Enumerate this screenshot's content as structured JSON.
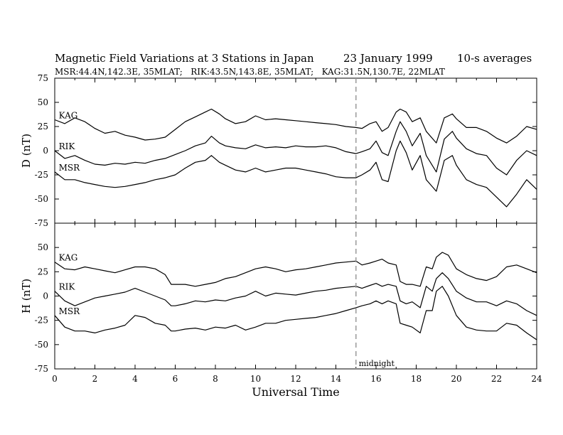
{
  "header": {
    "title": "Magnetic Field Variations at 3 Stations in Japan",
    "date": "23 January 1999",
    "averaging": "10-s averages",
    "stations_line": "MSR:44.4N,142.3E, 35MLAT;   RIK:43.5N,143.8E, 35MLAT;   KAG:31.5N,130.7E, 22MLAT"
  },
  "chart_data": [
    {
      "type": "line",
      "panel": "top",
      "ylabel": "D (nT)",
      "ylim": [
        -75,
        75
      ],
      "yticks": [
        75,
        50,
        25,
        0,
        -25,
        -50,
        -75
      ],
      "xlim": [
        0,
        24
      ],
      "grid": false,
      "series": [
        {
          "name": "KAG",
          "x": [
            0,
            0.5,
            1,
            1.5,
            2,
            2.5,
            3,
            3.5,
            4,
            4.5,
            5,
            5.5,
            6,
            6.5,
            7,
            7.5,
            7.8,
            8.2,
            8.5,
            9,
            9.5,
            10,
            10.5,
            11,
            11.5,
            12,
            12.5,
            13,
            13.5,
            14,
            14.5,
            15,
            15.3,
            15.7,
            16,
            16.3,
            16.6,
            17,
            17.2,
            17.5,
            17.8,
            18.2,
            18.5,
            19,
            19.4,
            19.8,
            20,
            20.5,
            21,
            21.5,
            22,
            22.5,
            23,
            23.5,
            24
          ],
          "y": [
            32,
            28,
            34,
            30,
            23,
            18,
            20,
            16,
            14,
            11,
            12,
            14,
            22,
            30,
            35,
            40,
            43,
            38,
            33,
            28,
            30,
            36,
            32,
            33,
            32,
            31,
            30,
            29,
            28,
            27,
            25,
            24,
            23,
            28,
            30,
            20,
            24,
            40,
            43,
            40,
            30,
            34,
            20,
            8,
            34,
            38,
            33,
            24,
            24,
            20,
            13,
            8,
            15,
            25,
            22
          ]
        },
        {
          "name": "RIK",
          "x": [
            0,
            0.5,
            1,
            1.5,
            2,
            2.5,
            3,
            3.5,
            4,
            4.5,
            5,
            5.5,
            6,
            6.5,
            7,
            7.5,
            7.8,
            8.2,
            8.5,
            9,
            9.5,
            10,
            10.5,
            11,
            11.5,
            12,
            12.5,
            13,
            13.5,
            14,
            14.5,
            15,
            15.3,
            15.7,
            16,
            16.3,
            16.6,
            17,
            17.2,
            17.5,
            17.8,
            18.2,
            18.5,
            19,
            19.4,
            19.8,
            20,
            20.5,
            21,
            21.5,
            22,
            22.5,
            23,
            23.5,
            24
          ],
          "y": [
            0,
            -8,
            -5,
            -10,
            -14,
            -15,
            -13,
            -14,
            -12,
            -13,
            -10,
            -8,
            -4,
            0,
            5,
            8,
            15,
            8,
            5,
            3,
            2,
            6,
            3,
            4,
            3,
            5,
            4,
            4,
            5,
            3,
            -1,
            -3,
            -1,
            2,
            10,
            -2,
            -5,
            20,
            30,
            20,
            5,
            18,
            -5,
            -22,
            12,
            20,
            13,
            2,
            -3,
            -5,
            -18,
            -25,
            -10,
            0,
            -5
          ]
        },
        {
          "name": "MSR",
          "x": [
            0,
            0.5,
            1,
            1.5,
            2,
            2.5,
            3,
            3.5,
            4,
            4.5,
            5,
            5.5,
            6,
            6.5,
            7,
            7.5,
            7.8,
            8.2,
            8.5,
            9,
            9.5,
            10,
            10.5,
            11,
            11.5,
            12,
            12.5,
            13,
            13.5,
            14,
            14.5,
            15,
            15.3,
            15.7,
            16,
            16.3,
            16.6,
            17,
            17.2,
            17.5,
            17.8,
            18.2,
            18.5,
            19,
            19.4,
            19.8,
            20,
            20.5,
            21,
            21.5,
            22,
            22.5,
            23,
            23.5,
            24
          ],
          "y": [
            -22,
            -30,
            -30,
            -33,
            -35,
            -37,
            -38,
            -37,
            -35,
            -33,
            -30,
            -28,
            -25,
            -18,
            -12,
            -10,
            -5,
            -12,
            -15,
            -20,
            -22,
            -18,
            -22,
            -20,
            -18,
            -18,
            -20,
            -22,
            -24,
            -27,
            -28,
            -28,
            -25,
            -20,
            -12,
            -30,
            -32,
            0,
            10,
            -2,
            -20,
            -5,
            -30,
            -42,
            -10,
            -5,
            -15,
            -30,
            -35,
            -38,
            -48,
            -58,
            -45,
            -30,
            -40
          ]
        }
      ]
    },
    {
      "type": "line",
      "panel": "bottom",
      "ylabel": "H (nT)",
      "ylim": [
        -75,
        75
      ],
      "yticks": [
        50,
        25,
        0,
        -25,
        -50,
        -75
      ],
      "xlim": [
        0,
        24
      ],
      "xticks": [
        0,
        2,
        4,
        6,
        8,
        10,
        12,
        14,
        16,
        18,
        20,
        22,
        24
      ],
      "xlabel": "Universal Time",
      "annotation": "midnight",
      "grid": false,
      "series": [
        {
          "name": "KAG",
          "x": [
            0,
            0.5,
            1,
            1.5,
            2,
            2.5,
            3,
            3.5,
            4,
            4.5,
            5,
            5.5,
            5.8,
            6,
            6.5,
            7,
            7.5,
            8,
            8.5,
            9,
            9.5,
            10,
            10.5,
            11,
            11.5,
            12,
            12.5,
            13,
            13.5,
            14,
            14.5,
            15,
            15.3,
            15.7,
            16,
            16.3,
            16.6,
            17,
            17.2,
            17.5,
            17.8,
            18.2,
            18.5,
            18.8,
            19,
            19.3,
            19.6,
            20,
            20.5,
            21,
            21.5,
            22,
            22.5,
            23,
            23.5,
            24
          ],
          "y": [
            35,
            28,
            27,
            30,
            28,
            26,
            24,
            27,
            30,
            30,
            28,
            22,
            12,
            12,
            12,
            10,
            12,
            14,
            18,
            20,
            24,
            28,
            30,
            28,
            25,
            27,
            28,
            30,
            32,
            34,
            35,
            36,
            32,
            34,
            36,
            38,
            34,
            32,
            15,
            12,
            12,
            10,
            30,
            28,
            40,
            45,
            42,
            28,
            22,
            18,
            16,
            20,
            30,
            32,
            28,
            24
          ]
        },
        {
          "name": "RIK",
          "x": [
            0,
            0.5,
            1,
            1.5,
            2,
            2.5,
            3,
            3.5,
            4,
            4.5,
            5,
            5.5,
            5.8,
            6,
            6.5,
            7,
            7.5,
            8,
            8.5,
            9,
            9.5,
            10,
            10.5,
            11,
            11.5,
            12,
            12.5,
            13,
            13.5,
            14,
            14.5,
            15,
            15.3,
            15.7,
            16,
            16.3,
            16.6,
            17,
            17.2,
            17.5,
            17.8,
            18.2,
            18.5,
            18.8,
            19,
            19.3,
            19.6,
            20,
            20.5,
            21,
            21.5,
            22,
            22.5,
            23,
            23.5,
            24
          ],
          "y": [
            5,
            -5,
            -10,
            -6,
            -2,
            0,
            2,
            4,
            8,
            4,
            0,
            -4,
            -10,
            -10,
            -8,
            -5,
            -6,
            -4,
            -5,
            -2,
            0,
            5,
            0,
            3,
            2,
            1,
            3,
            5,
            6,
            8,
            9,
            10,
            8,
            11,
            13,
            10,
            12,
            10,
            -5,
            -8,
            -6,
            -12,
            10,
            5,
            18,
            24,
            18,
            5,
            -2,
            -6,
            -6,
            -10,
            -5,
            -8,
            -15,
            -20
          ]
        },
        {
          "name": "MSR",
          "x": [
            0,
            0.5,
            1,
            1.5,
            2,
            2.5,
            3,
            3.5,
            4,
            4.5,
            5,
            5.5,
            5.8,
            6,
            6.5,
            7,
            7.5,
            8,
            8.5,
            9,
            9.5,
            10,
            10.5,
            11,
            11.5,
            12,
            12.5,
            13,
            13.5,
            14,
            14.5,
            15,
            15.3,
            15.7,
            16,
            16.3,
            16.6,
            17,
            17.2,
            17.5,
            17.8,
            18.2,
            18.5,
            18.8,
            19,
            19.3,
            19.6,
            20,
            20.5,
            21,
            21.5,
            22,
            22.5,
            23,
            23.5,
            24
          ],
          "y": [
            -20,
            -32,
            -36,
            -36,
            -38,
            -35,
            -33,
            -30,
            -20,
            -22,
            -28,
            -30,
            -36,
            -36,
            -34,
            -33,
            -35,
            -32,
            -33,
            -30,
            -35,
            -32,
            -28,
            -28,
            -25,
            -24,
            -23,
            -22,
            -20,
            -18,
            -15,
            -12,
            -10,
            -8,
            -5,
            -8,
            -5,
            -8,
            -28,
            -30,
            -32,
            -38,
            -15,
            -15,
            5,
            10,
            0,
            -20,
            -32,
            -35,
            -36,
            -36,
            -28,
            -30,
            -38,
            -45
          ]
        }
      ]
    }
  ]
}
